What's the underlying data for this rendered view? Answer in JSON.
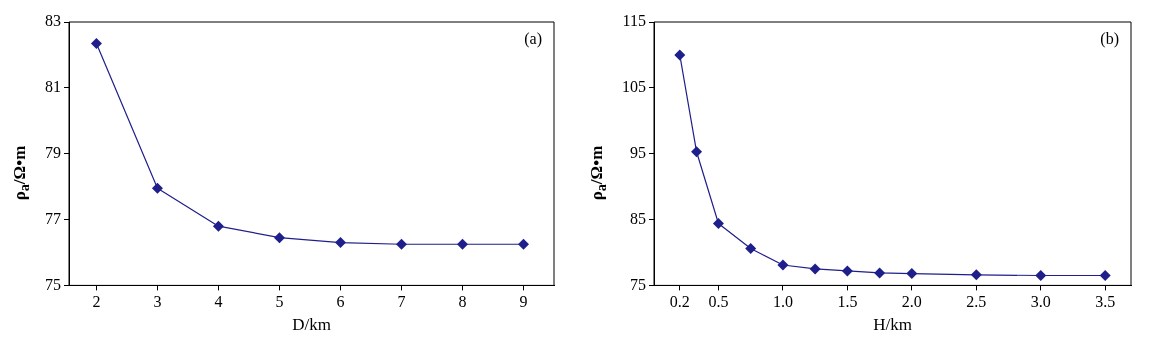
{
  "chart_data": [
    {
      "type": "line",
      "xlabel": "D/km",
      "ylabel": "ρ$_{a}$/Ω•m",
      "annotations": [
        "(a)"
      ],
      "marker": "diamond",
      "grid": false,
      "legend": false,
      "x": [
        2,
        3,
        4,
        5,
        6,
        7,
        8,
        9
      ],
      "series": [
        {
          "color": "#1f1f8c",
          "values": [
            82.35,
            77.95,
            76.8,
            76.45,
            76.3,
            76.25,
            76.25,
            76.25
          ]
        }
      ],
      "xlim": [
        1.55,
        9.5
      ],
      "xticks": [
        2,
        3,
        4,
        5,
        6,
        7,
        8,
        9
      ],
      "ylim": [
        75,
        83
      ],
      "yticks": [
        75,
        77,
        79,
        81,
        83
      ]
    },
    {
      "type": "line",
      "xlabel": "H/km",
      "ylabel": "ρ$_{a}$/Ω•m",
      "annotations": [
        "(b)"
      ],
      "marker": "diamond",
      "grid": false,
      "legend": false,
      "x": [
        0.2,
        0.33,
        0.5,
        0.75,
        1.0,
        1.25,
        1.5,
        1.75,
        2.0,
        2.5,
        3.0,
        3.5
      ],
      "series": [
        {
          "color": "#1f1f8c",
          "values": [
            110,
            95.3,
            84.4,
            80.6,
            78.1,
            77.5,
            77.2,
            76.9,
            76.8,
            76.6,
            76.5,
            76.5
          ]
        }
      ],
      "xlim": [
        0,
        3.7
      ],
      "xticks": [
        {
          "value": 0.2,
          "label": "0.2"
        },
        {
          "value": 0.5,
          "label": "0.5"
        },
        {
          "value": 1.0,
          "label": "1.0"
        },
        {
          "value": 1.5,
          "label": "1.5"
        },
        {
          "value": 2.0,
          "label": "2.0"
        },
        {
          "value": 2.5,
          "label": "2.5"
        },
        {
          "value": 3.0,
          "label": "3.0"
        },
        {
          "value": 3.5,
          "label": "3.5"
        }
      ],
      "ylim": [
        75,
        115
      ],
      "yticks": [
        75,
        85,
        95,
        105,
        115
      ]
    }
  ]
}
